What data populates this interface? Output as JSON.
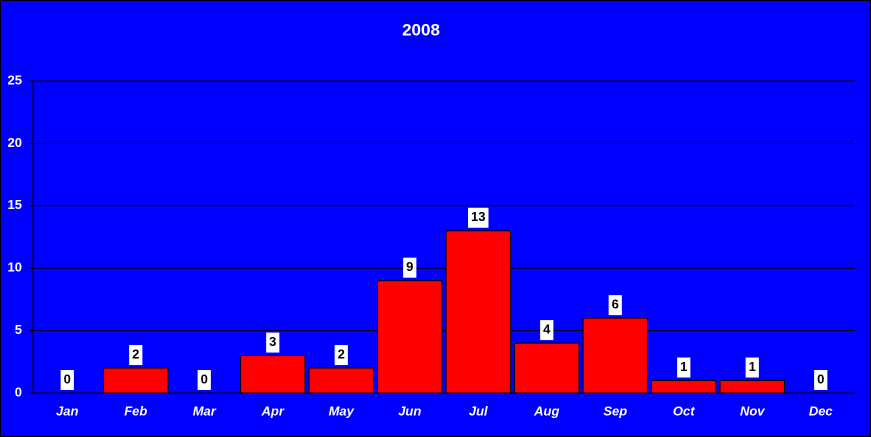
{
  "chart_data": {
    "type": "bar",
    "title": "2008",
    "categories": [
      "Jan",
      "Feb",
      "Mar",
      "Apr",
      "May",
      "Jun",
      "Jul",
      "Aug",
      "Sep",
      "Oct",
      "Nov",
      "Dec"
    ],
    "values": [
      0,
      2,
      0,
      3,
      2,
      9,
      13,
      4,
      6,
      1,
      1,
      0
    ],
    "color": "#ff0000",
    "ylim": [
      0,
      25
    ],
    "yticks": [
      0,
      5,
      10,
      15,
      20,
      25
    ],
    "grid": true
  }
}
